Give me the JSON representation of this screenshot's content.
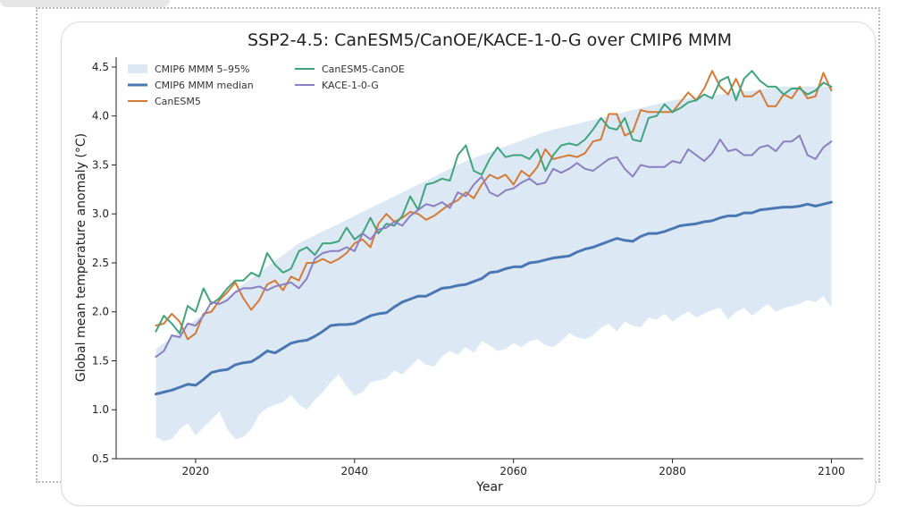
{
  "chart_data": {
    "type": "line",
    "title": "SSP2-4.5: CanESM5/CanOE/KACE-1-0-G over CMIP6 MMM",
    "xlabel": "Year",
    "ylabel": "Global mean temperature anomaly (°C)",
    "xlim": [
      2010,
      2104
    ],
    "ylim": [
      0.5,
      4.6
    ],
    "xticks": [
      2020,
      2040,
      2060,
      2080,
      2100
    ],
    "yticks": [
      0.5,
      1.0,
      1.5,
      2.0,
      2.5,
      3.0,
      3.5,
      4.0,
      4.5
    ],
    "grid": false,
    "legend_position": "upper-left",
    "x": [
      2015,
      2016,
      2017,
      2018,
      2019,
      2020,
      2021,
      2022,
      2023,
      2024,
      2025,
      2026,
      2027,
      2028,
      2029,
      2030,
      2031,
      2032,
      2033,
      2034,
      2035,
      2036,
      2037,
      2038,
      2039,
      2040,
      2041,
      2042,
      2043,
      2044,
      2045,
      2046,
      2047,
      2048,
      2049,
      2050,
      2051,
      2052,
      2053,
      2054,
      2055,
      2056,
      2057,
      2058,
      2059,
      2060,
      2061,
      2062,
      2063,
      2064,
      2065,
      2066,
      2067,
      2068,
      2069,
      2070,
      2071,
      2072,
      2073,
      2074,
      2075,
      2076,
      2077,
      2078,
      2079,
      2080,
      2081,
      2082,
      2083,
      2084,
      2085,
      2086,
      2087,
      2088,
      2089,
      2090,
      2091,
      2092,
      2093,
      2094,
      2095,
      2096,
      2097,
      2098,
      2099,
      2100
    ],
    "band": {
      "name": "CMIP6 MMM 5–95%",
      "color": "#dde8f5",
      "low": [
        0.72,
        0.68,
        0.7,
        0.8,
        0.86,
        0.74,
        0.82,
        0.9,
        0.98,
        0.8,
        0.7,
        0.72,
        0.8,
        0.95,
        1.02,
        1.05,
        1.08,
        1.15,
        1.05,
        1.0,
        1.1,
        1.18,
        1.28,
        1.36,
        1.24,
        1.14,
        1.18,
        1.28,
        1.3,
        1.32,
        1.4,
        1.36,
        1.44,
        1.52,
        1.46,
        1.44,
        1.54,
        1.6,
        1.56,
        1.64,
        1.58,
        1.7,
        1.66,
        1.6,
        1.62,
        1.68,
        1.64,
        1.7,
        1.72,
        1.66,
        1.64,
        1.7,
        1.78,
        1.74,
        1.72,
        1.76,
        1.84,
        1.88,
        1.8,
        1.9,
        1.86,
        1.84,
        1.94,
        1.92,
        1.98,
        1.9,
        1.96,
        2.0,
        1.94,
        1.98,
        2.02,
        2.04,
        1.92,
        2.0,
        2.04,
        1.96,
        2.02,
        2.08,
        2.0,
        2.04,
        2.06,
        2.08,
        2.12,
        2.1,
        2.16,
        2.04
      ],
      "high": [
        1.62,
        1.68,
        1.74,
        1.8,
        1.86,
        1.92,
        1.98,
        2.04,
        2.1,
        2.16,
        2.22,
        2.28,
        2.34,
        2.4,
        2.46,
        2.52,
        2.58,
        2.64,
        2.7,
        2.74,
        2.78,
        2.82,
        2.86,
        2.9,
        2.94,
        2.98,
        3.02,
        3.06,
        3.1,
        3.14,
        3.18,
        3.22,
        3.26,
        3.3,
        3.34,
        3.38,
        3.42,
        3.46,
        3.5,
        3.54,
        3.57,
        3.6,
        3.63,
        3.66,
        3.69,
        3.72,
        3.75,
        3.78,
        3.81,
        3.84,
        3.86,
        3.88,
        3.9,
        3.92,
        3.94,
        3.96,
        3.98,
        4.0,
        4.02,
        4.04,
        4.06,
        4.08,
        4.1,
        4.12,
        4.14,
        4.16,
        4.17,
        4.18,
        4.19,
        4.2,
        4.21,
        4.22,
        4.23,
        4.24,
        4.25,
        4.26,
        4.27,
        4.28,
        4.29,
        4.3,
        4.3,
        4.3,
        4.3,
        4.3,
        4.3,
        4.3
      ]
    },
    "series": [
      {
        "name": "CMIP6 MMM median",
        "color": "#4a77b3",
        "width": 3,
        "values": [
          1.16,
          1.18,
          1.2,
          1.23,
          1.26,
          1.25,
          1.31,
          1.38,
          1.4,
          1.41,
          1.46,
          1.48,
          1.49,
          1.54,
          1.6,
          1.58,
          1.63,
          1.68,
          1.7,
          1.71,
          1.75,
          1.8,
          1.86,
          1.87,
          1.87,
          1.88,
          1.92,
          1.96,
          1.98,
          1.99,
          2.05,
          2.1,
          2.13,
          2.16,
          2.16,
          2.2,
          2.24,
          2.25,
          2.27,
          2.28,
          2.31,
          2.34,
          2.4,
          2.41,
          2.44,
          2.46,
          2.46,
          2.5,
          2.51,
          2.53,
          2.55,
          2.56,
          2.57,
          2.61,
          2.64,
          2.66,
          2.69,
          2.72,
          2.75,
          2.73,
          2.72,
          2.77,
          2.8,
          2.8,
          2.82,
          2.85,
          2.88,
          2.89,
          2.9,
          2.92,
          2.93,
          2.96,
          2.98,
          2.98,
          3.01,
          3.01,
          3.04,
          3.05,
          3.06,
          3.07,
          3.07,
          3.08,
          3.1,
          3.08,
          3.1,
          3.12
        ]
      },
      {
        "name": "CanESM5",
        "color": "#d47a35",
        "width": 2,
        "values": [
          1.86,
          1.88,
          1.98,
          1.9,
          1.72,
          1.78,
          1.98,
          2.0,
          2.12,
          2.2,
          2.3,
          2.14,
          2.02,
          2.12,
          2.28,
          2.32,
          2.22,
          2.36,
          2.32,
          2.5,
          2.5,
          2.54,
          2.5,
          2.54,
          2.6,
          2.7,
          2.74,
          2.66,
          2.9,
          3.0,
          2.92,
          2.96,
          3.02,
          3.0,
          2.94,
          2.98,
          3.04,
          3.1,
          3.14,
          3.22,
          3.16,
          3.3,
          3.4,
          3.36,
          3.4,
          3.3,
          3.44,
          3.38,
          3.48,
          3.66,
          3.56,
          3.58,
          3.6,
          3.58,
          3.62,
          3.74,
          3.76,
          4.02,
          4.02,
          3.8,
          3.84,
          4.06,
          4.04,
          4.04,
          4.04,
          4.04,
          4.14,
          4.24,
          4.16,
          4.28,
          4.46,
          4.3,
          4.22,
          4.38,
          4.2,
          4.2,
          4.26,
          4.1,
          4.1,
          4.22,
          4.18,
          4.3,
          4.18,
          4.2,
          4.44,
          4.26
        ]
      },
      {
        "name": "CanESM5-CanOE",
        "color": "#3fa47c",
        "width": 2,
        "values": [
          1.8,
          1.96,
          1.88,
          1.78,
          2.06,
          2.0,
          2.24,
          2.08,
          2.14,
          2.24,
          2.32,
          2.32,
          2.4,
          2.36,
          2.6,
          2.48,
          2.4,
          2.44,
          2.62,
          2.66,
          2.58,
          2.7,
          2.7,
          2.72,
          2.86,
          2.74,
          2.8,
          2.96,
          2.8,
          2.9,
          2.88,
          2.98,
          3.18,
          3.04,
          3.3,
          3.32,
          3.36,
          3.34,
          3.6,
          3.7,
          3.44,
          3.4,
          3.56,
          3.68,
          3.58,
          3.6,
          3.6,
          3.56,
          3.66,
          3.44,
          3.6,
          3.7,
          3.72,
          3.7,
          3.76,
          3.86,
          3.98,
          3.88,
          3.86,
          3.98,
          3.76,
          3.74,
          3.98,
          4.0,
          4.12,
          4.04,
          4.08,
          4.14,
          4.16,
          4.22,
          4.18,
          4.36,
          4.4,
          4.16,
          4.38,
          4.46,
          4.36,
          4.3,
          4.3,
          4.22,
          4.28,
          4.28,
          4.22,
          4.26,
          4.34,
          4.3
        ]
      },
      {
        "name": "KACE-1-0-G",
        "color": "#8a7fc0",
        "width": 2,
        "values": [
          1.54,
          1.6,
          1.76,
          1.74,
          1.88,
          1.86,
          1.96,
          2.1,
          2.08,
          2.12,
          2.2,
          2.24,
          2.24,
          2.26,
          2.22,
          2.26,
          2.28,
          2.3,
          2.24,
          2.34,
          2.54,
          2.6,
          2.62,
          2.62,
          2.66,
          2.62,
          2.8,
          2.74,
          2.84,
          2.86,
          2.92,
          2.88,
          2.98,
          3.04,
          3.1,
          3.08,
          3.12,
          3.06,
          3.22,
          3.18,
          3.3,
          3.38,
          3.22,
          3.18,
          3.24,
          3.26,
          3.32,
          3.36,
          3.3,
          3.32,
          3.46,
          3.42,
          3.46,
          3.52,
          3.46,
          3.44,
          3.5,
          3.56,
          3.58,
          3.46,
          3.38,
          3.5,
          3.48,
          3.48,
          3.48,
          3.54,
          3.52,
          3.66,
          3.6,
          3.54,
          3.62,
          3.76,
          3.64,
          3.66,
          3.6,
          3.6,
          3.68,
          3.7,
          3.64,
          3.74,
          3.74,
          3.8,
          3.6,
          3.56,
          3.68,
          3.74
        ]
      }
    ]
  }
}
